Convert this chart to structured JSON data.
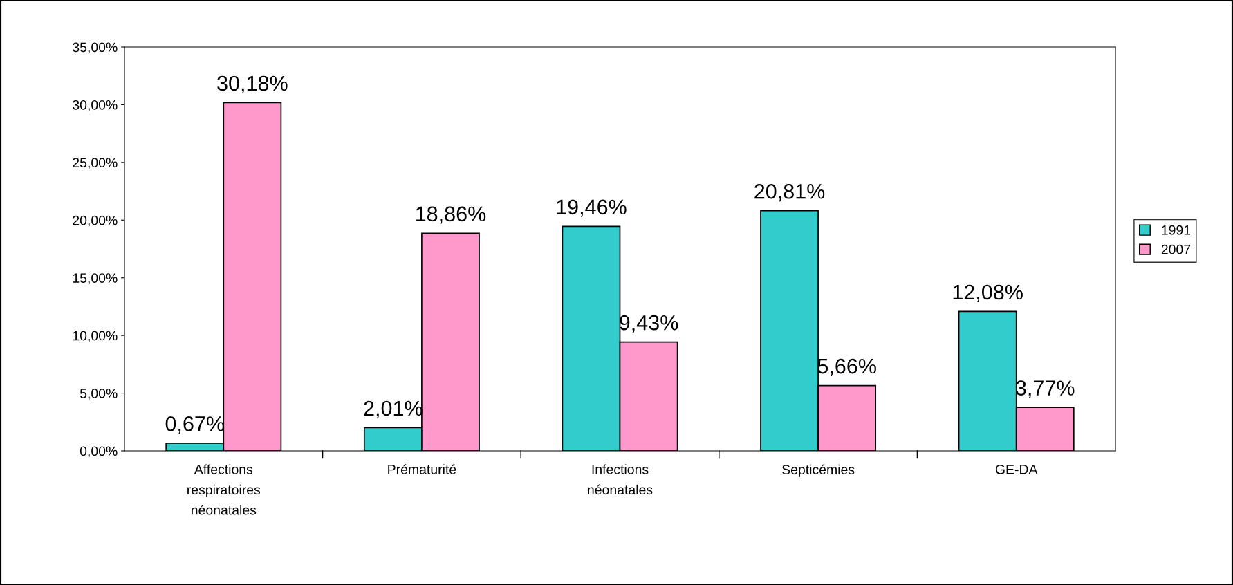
{
  "chart_data": {
    "type": "bar",
    "categories": [
      "Affections\nrespiratoires\nnéonatales",
      "Prématurité",
      "Infections\nnéonatales",
      "Septicémies",
      "GE-DA"
    ],
    "series": [
      {
        "name": "1991",
        "color": "#33cccc",
        "values": [
          0.67,
          2.01,
          19.46,
          20.81,
          12.08
        ],
        "value_labels": [
          "0,67%",
          "2,01%",
          "19,46%",
          "20,81%",
          "12,08%"
        ]
      },
      {
        "name": "2007",
        "color": "#ff99cc",
        "values": [
          30.18,
          18.86,
          9.43,
          5.66,
          3.77
        ],
        "value_labels": [
          "30,18%",
          "18,86%",
          "9,43%",
          "5,66%",
          "3,77%"
        ]
      }
    ],
    "ylim": [
      0,
      35
    ],
    "yticks": [
      {
        "value": 0,
        "label": "0,00%"
      },
      {
        "value": 5,
        "label": "5,00%"
      },
      {
        "value": 10,
        "label": "10,00%"
      },
      {
        "value": 15,
        "label": "15,00%"
      },
      {
        "value": 20,
        "label": "20,00%"
      },
      {
        "value": 25,
        "label": "25,00%"
      },
      {
        "value": 30,
        "label": "30,00%"
      },
      {
        "value": 35,
        "label": "35,00%"
      }
    ],
    "grid": false,
    "legend": "right"
  }
}
